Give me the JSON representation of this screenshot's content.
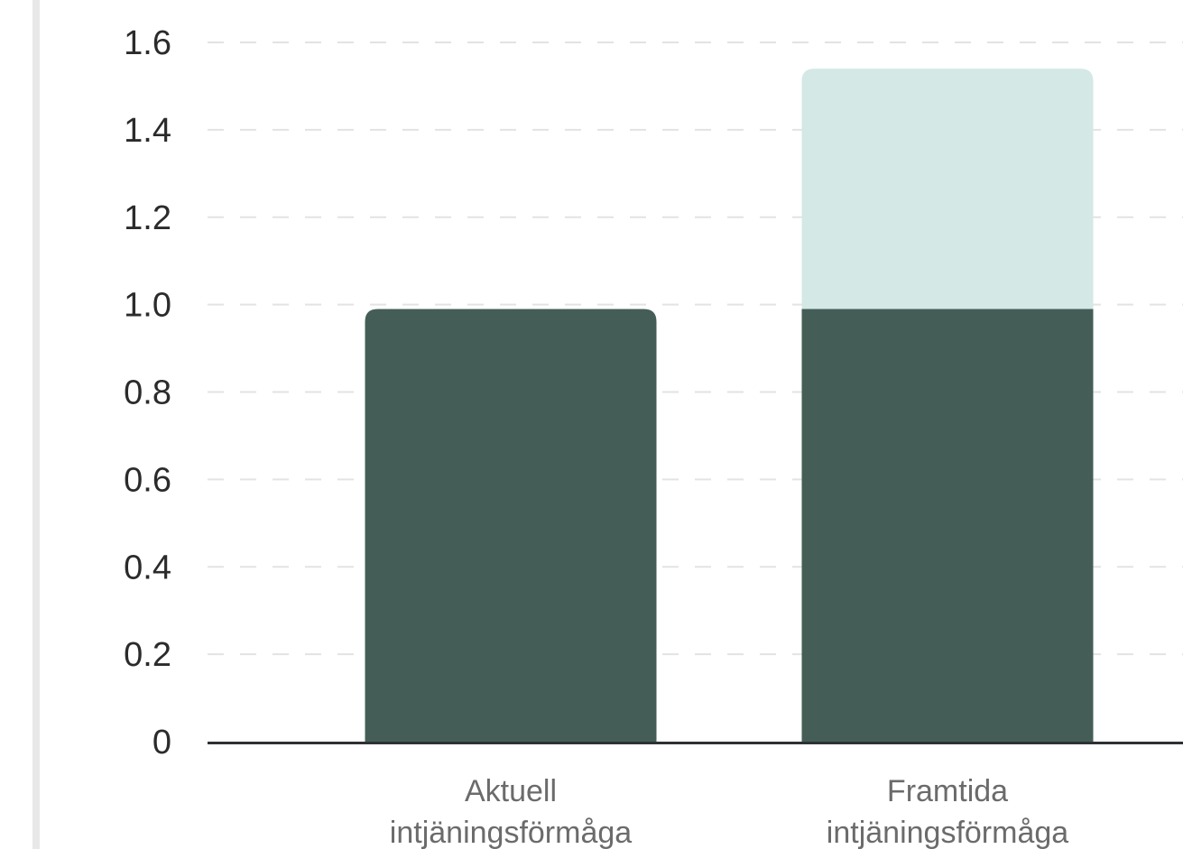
{
  "chart_data": {
    "type": "bar",
    "stacked": true,
    "categories": [
      [
        "Aktuell",
        "intjäningsförmåga"
      ],
      [
        "Framtida",
        "intjäningsförmåga"
      ]
    ],
    "series": [
      {
        "values": [
          0.99,
          0.99
        ],
        "color": "#445e57"
      },
      {
        "values": [
          0,
          0.55
        ],
        "color": "#d4e8e6"
      }
    ],
    "yticks": [
      "0",
      "0.2",
      "0.4",
      "0.6",
      "0.8",
      "1.0",
      "1.2",
      "1.4",
      "1.6"
    ],
    "ylim": [
      0,
      1.6
    ],
    "grid": true,
    "title": "",
    "xlabel": "",
    "ylabel": ""
  }
}
